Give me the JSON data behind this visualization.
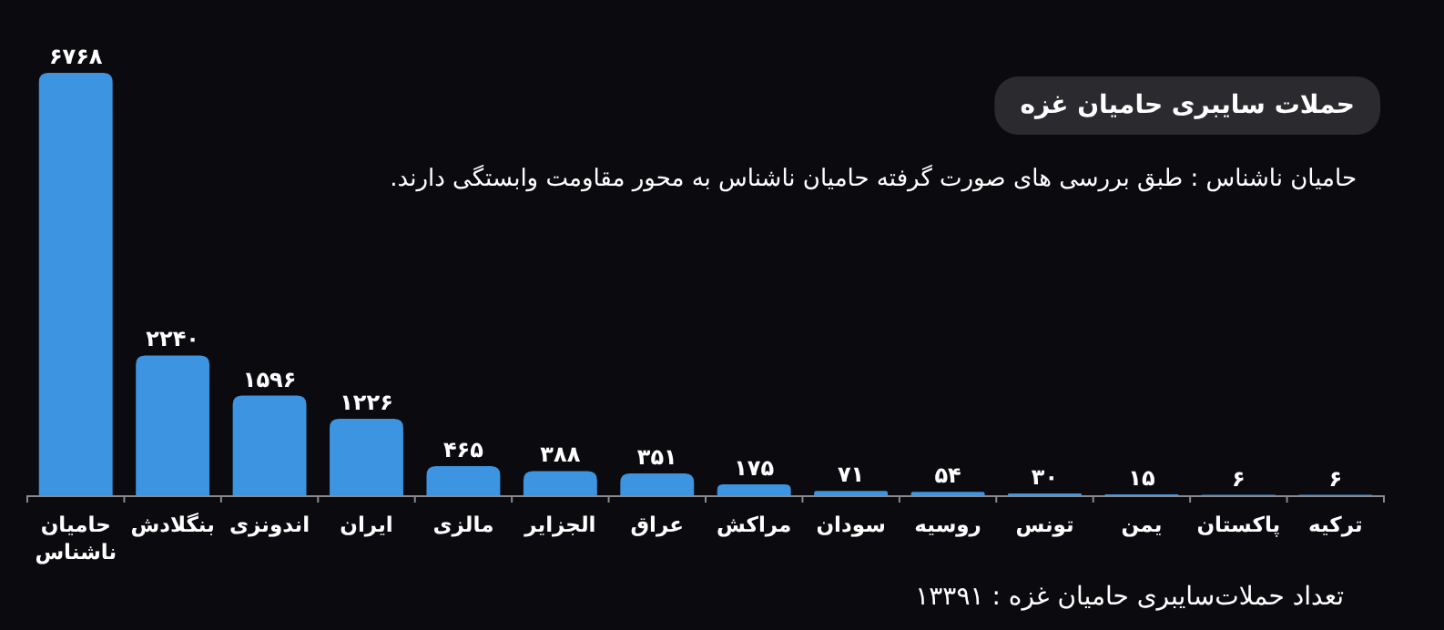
{
  "chart_data": {
    "type": "bar",
    "title": "حملات سایبری حامیان غزه",
    "subtitle": "حامیان ناشناس : طبق بررسی های صورت گرفته حامیان ناشناس به محور مقاومت وابستگی دارند.",
    "annotations": [
      "تعداد حملات‌سایبری حامیان غزه : ۱۳۳۹۱"
    ],
    "categories": [
      "حامیان ناشناس",
      "بنگلادش",
      "اندونزی",
      "ایران",
      "مالزی",
      "الجزایر",
      "عراق",
      "مراکش",
      "سودان",
      "روسیه",
      "تونس",
      "یمن",
      "پاکستان",
      "ترکیه"
    ],
    "values": [
      6768,
      2240,
      1596,
      1226,
      465,
      388,
      351,
      175,
      71,
      54,
      30,
      15,
      6,
      6
    ],
    "value_labels": [
      "۶۷۶۸",
      "۲۲۴۰",
      "۱۵۹۶",
      "۱۲۲۶",
      "۴۶۵",
      "۳۸۸",
      "۳۵۱",
      "۱۷۵",
      "۷۱",
      "۵۴",
      "۳۰",
      "۱۵",
      "۶",
      "۶"
    ],
    "color": "#3d94e0"
  }
}
